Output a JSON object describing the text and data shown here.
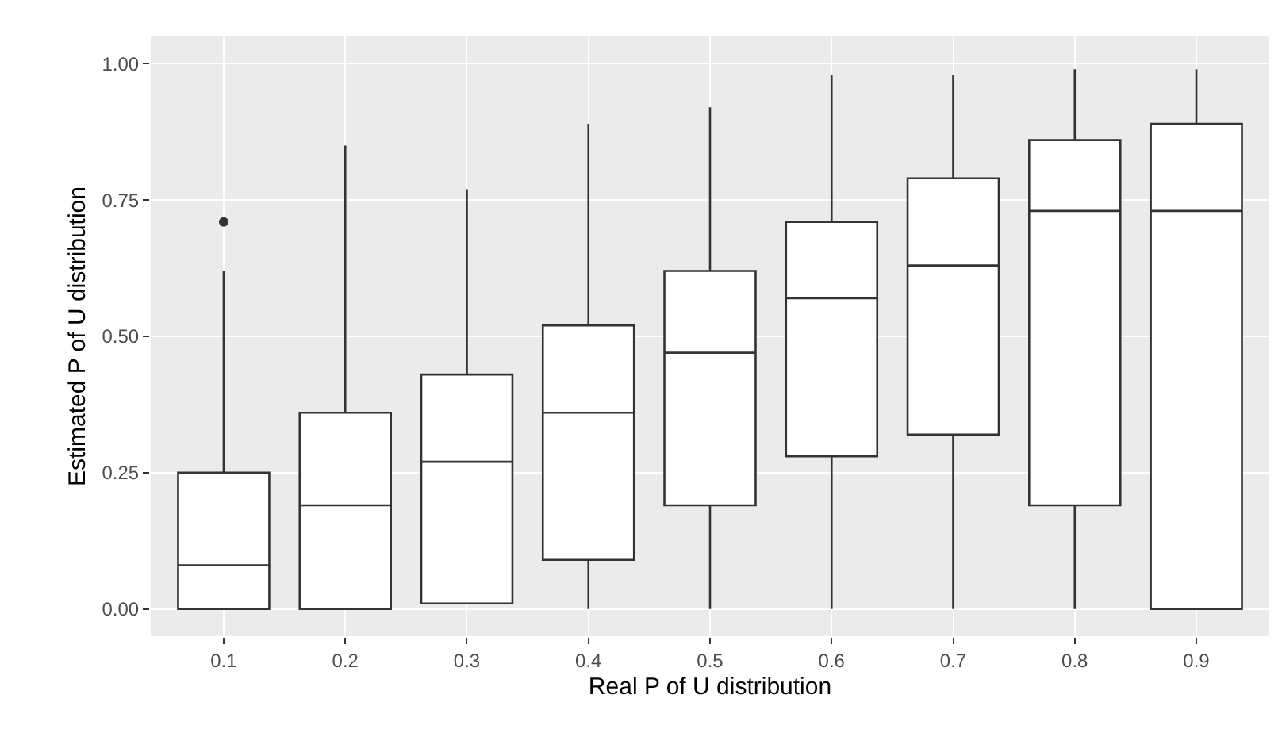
{
  "chart_data": {
    "type": "box",
    "xlabel": "Real P of U distribution",
    "ylabel": "Estimated P of U distribution",
    "categories": [
      "0.1",
      "0.2",
      "0.3",
      "0.4",
      "0.5",
      "0.6",
      "0.7",
      "0.8",
      "0.9"
    ],
    "boxes": [
      {
        "low": 0,
        "q1": 0,
        "median": 0.08,
        "q3": 0.25,
        "high": 0.62,
        "outliers": [
          0.71
        ]
      },
      {
        "low": 0,
        "q1": 0,
        "median": 0.19,
        "q3": 0.36,
        "high": 0.85
      },
      {
        "low": 0.01,
        "q1": 0.01,
        "median": 0.27,
        "q3": 0.43,
        "high": 0.77
      },
      {
        "low": 0,
        "q1": 0.09,
        "median": 0.36,
        "q3": 0.52,
        "high": 0.89
      },
      {
        "low": 0,
        "q1": 0.19,
        "median": 0.47,
        "q3": 0.62,
        "high": 0.92
      },
      {
        "low": 0,
        "q1": 0.28,
        "median": 0.57,
        "q3": 0.71,
        "high": 0.98
      },
      {
        "low": 0,
        "q1": 0.32,
        "median": 0.63,
        "q3": 0.79,
        "high": 0.98
      },
      {
        "low": 0,
        "q1": 0.19,
        "median": 0.73,
        "q3": 0.86,
        "high": 0.99
      },
      {
        "low": 0,
        "q1": 0,
        "median": 0.73,
        "q3": 0.89,
        "high": 0.99
      }
    ],
    "ylim": [
      -0.05,
      1.05
    ],
    "yticks": [
      {
        "value": 0,
        "label": "0.00"
      },
      {
        "value": 0.25,
        "label": "0.25"
      },
      {
        "value": 0.5,
        "label": "0.50"
      },
      {
        "value": 0.75,
        "label": "0.75"
      },
      {
        "value": 1,
        "label": "1.00"
      }
    ],
    "grid": true
  }
}
